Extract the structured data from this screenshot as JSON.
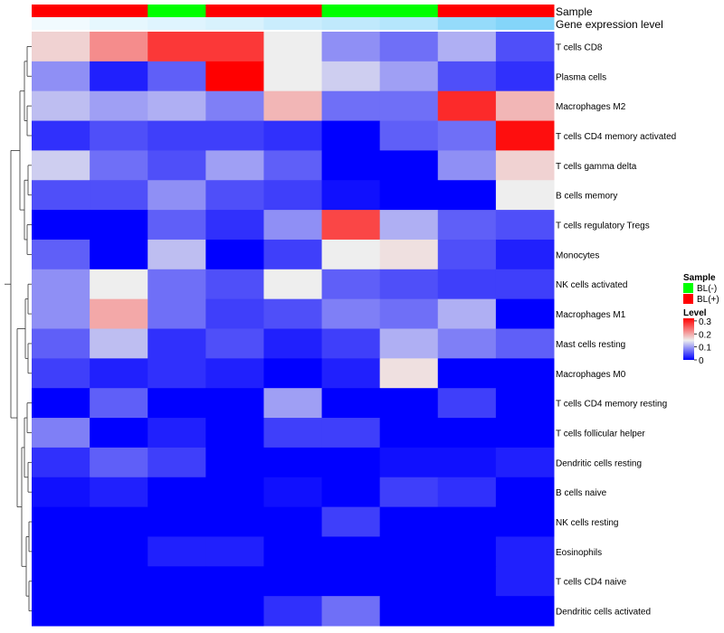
{
  "chart_data": {
    "type": "heatmap",
    "title": "",
    "rows": [
      "T cells CD8",
      "Plasma cells",
      "Macrophages M2",
      "T cells CD4 memory activated",
      "T cells gamma delta",
      "B cells memory",
      "T cells regulatory  Tregs",
      "Monocytes",
      "NK cells activated",
      "Macrophages M1",
      "Mast cells resting",
      "Macrophages M0",
      "T cells CD4 memory resting",
      "T cells follicular helper",
      "Dendritic cells resting",
      "B cells naive",
      "NK cells resting",
      "Eosinophils",
      "T cells CD4 naive",
      "Dendritic cells activated"
    ],
    "column_count": 9,
    "values": [
      [
        0.17,
        0.22,
        0.28,
        0.28,
        0.15,
        0.09,
        0.07,
        0.11,
        0.05
      ],
      [
        0.09,
        0.02,
        0.06,
        0.32,
        0.15,
        0.13,
        0.1,
        0.05,
        0.03
      ],
      [
        0.12,
        0.1,
        0.11,
        0.08,
        0.19,
        0.07,
        0.07,
        0.29,
        0.19
      ],
      [
        0.03,
        0.05,
        0.04,
        0.04,
        0.03,
        0.0,
        0.06,
        0.07,
        0.31
      ],
      [
        0.13,
        0.07,
        0.05,
        0.1,
        0.06,
        0.0,
        0.0,
        0.09,
        0.17
      ],
      [
        0.05,
        0.05,
        0.09,
        0.05,
        0.04,
        0.01,
        0.0,
        0.0,
        0.15
      ],
      [
        0.0,
        0.0,
        0.06,
        0.03,
        0.09,
        0.27,
        0.11,
        0.06,
        0.05
      ],
      [
        0.06,
        0.0,
        0.12,
        0.0,
        0.04,
        0.15,
        0.16,
        0.05,
        0.02
      ],
      [
        0.09,
        0.15,
        0.07,
        0.05,
        0.15,
        0.06,
        0.05,
        0.04,
        0.04
      ],
      [
        0.09,
        0.2,
        0.07,
        0.04,
        0.05,
        0.08,
        0.07,
        0.11,
        0.0
      ],
      [
        0.06,
        0.12,
        0.03,
        0.05,
        0.02,
        0.04,
        0.11,
        0.08,
        0.06
      ],
      [
        0.04,
        0.02,
        0.03,
        0.02,
        0.0,
        0.02,
        0.16,
        0.0,
        0.0
      ],
      [
        0.0,
        0.06,
        0.0,
        0.0,
        0.1,
        0.0,
        0.0,
        0.04,
        0.0
      ],
      [
        0.08,
        0.0,
        0.02,
        0.0,
        0.04,
        0.04,
        0.0,
        0.0,
        0.0
      ],
      [
        0.03,
        0.06,
        0.04,
        0.0,
        0.0,
        0.0,
        0.01,
        0.01,
        0.02
      ],
      [
        0.01,
        0.02,
        0.0,
        0.0,
        0.01,
        0.0,
        0.04,
        0.03,
        0.0
      ],
      [
        0.0,
        0.0,
        0.0,
        0.0,
        0.0,
        0.04,
        0.0,
        0.0,
        0.0
      ],
      [
        0.0,
        0.0,
        0.02,
        0.02,
        0.0,
        0.0,
        0.0,
        0.0,
        0.02
      ],
      [
        0.0,
        0.0,
        0.0,
        0.0,
        0.0,
        0.0,
        0.0,
        0.0,
        0.02
      ],
      [
        0.0,
        0.0,
        0.0,
        0.0,
        0.03,
        0.07,
        0.0,
        0.0,
        0.0
      ]
    ],
    "annotations": {
      "sample": {
        "label": "Sample",
        "values": [
          "BL(+)",
          "BL(+)",
          "BL(-)",
          "BL(+)",
          "BL(+)",
          "BL(-)",
          "BL(-)",
          "BL(+)",
          "BL(+)"
        ],
        "colors": {
          "BL(-)": "#00ff00",
          "BL(+)": "#ff0000"
        }
      },
      "gene_expression": {
        "label": "Gene expression level",
        "values": [
          0.08,
          0.14,
          0.18,
          0.22,
          0.3,
          0.36,
          0.42,
          0.6,
          0.7
        ],
        "color_low": "#ffffff",
        "color_high": "#4fc3f7"
      }
    },
    "color_scale": {
      "low_color": "#0000ff",
      "mid_color": "#eeeeee",
      "high_color": "#ff0000",
      "min": 0,
      "mid": 0.15,
      "max": 0.32
    },
    "legend": {
      "sample_title": "Sample",
      "sample_items": [
        {
          "label": "BL(-)",
          "color": "#00ff00"
        },
        {
          "label": "BL(+)",
          "color": "#ff0000"
        }
      ],
      "level_title": "Level",
      "level_ticks": [
        {
          "label": "0.3",
          "value": 0.3
        },
        {
          "label": "0.2",
          "value": 0.2
        },
        {
          "label": "0.1",
          "value": 0.1
        },
        {
          "label": "0",
          "value": 0
        }
      ],
      "placement": "right"
    }
  }
}
